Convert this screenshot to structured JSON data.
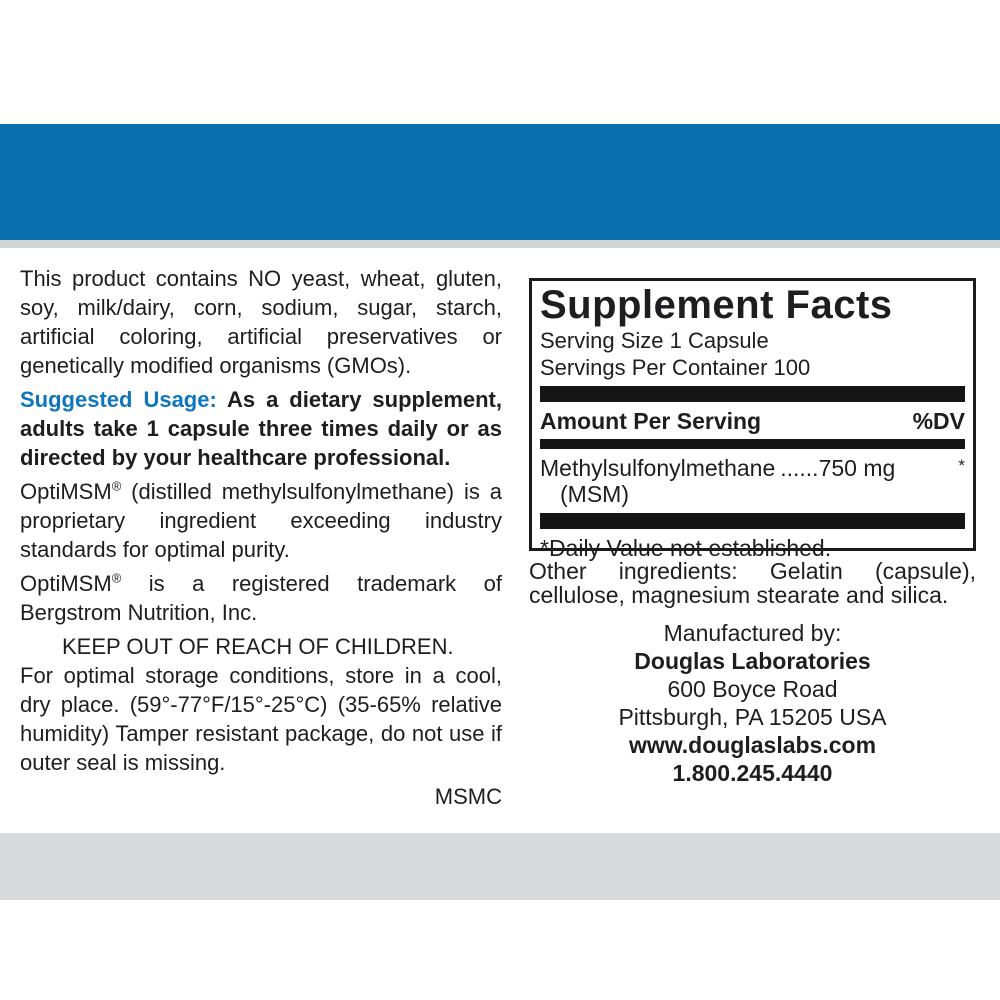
{
  "colors": {
    "banner_blue": "#0a6fae",
    "accent_blue": "#0e76bc",
    "text_black": "#1e1e20",
    "divider_strip_gray": "#d2d4d6",
    "bottom_band_gray": "#d8d9da",
    "rule_black": "#151515"
  },
  "left_column": {
    "p1": "This product contains NO yeast, wheat, gluten, soy, milk/dairy, corn, sodium, sugar, starch, artificial coloring, artificial preservatives or genetically modified organisms (GMOs).",
    "suggested_usage_label": "Suggested Usage:",
    "suggested_usage_text": " As a dietary supplement, adults take 1 capsule three times daily or as directed by your healthcare professional.",
    "p3_brand": "OptiMSM",
    "p3_reg": "®",
    "p3_rest": " (distilled methylsulfonylmethane) is a proprietary ingredient exceeding industry standards for optimal purity.",
    "p4_brand": "OptiMSM",
    "p4_reg": "®",
    "p4_rest": " is a registered trademark of Bergstrom Nutrition, Inc.",
    "warning_line": "KEEP OUT OF REACH OF CHILDREN.",
    "storage_text": "For optimal storage conditions, store in a cool, dry place. (59°-77°F/15°-25°C) (35-65% relative humidity)  Tamper resistant package, do not use if outer seal is missing.",
    "product_code": "MSMC"
  },
  "supplement_facts": {
    "title": "Supplement Facts",
    "serving_size": "Serving Size 1 Capsule",
    "servings_per_container": "Servings Per Container 100",
    "amount_per_serving_label": "Amount Per Serving",
    "dv_label": "%DV",
    "ingredients": [
      {
        "name": "Methylsulfonylmethane",
        "name_line2": "(MSM)",
        "leader": "......",
        "amount": "750 mg",
        "dv": "*"
      }
    ],
    "footnote": "*Daily Value not established."
  },
  "other_ingredients": "Other ingredients: Gelatin (capsule), cellulose, magnesium stearate and silica.",
  "manufacturer": {
    "label": "Manufactured by:",
    "name": "Douglas Laboratories",
    "address_line1": "600 Boyce Road",
    "address_line2": "Pittsburgh, PA 15205 USA",
    "website": "www.douglaslabs.com",
    "phone": "1.800.245.4440"
  }
}
